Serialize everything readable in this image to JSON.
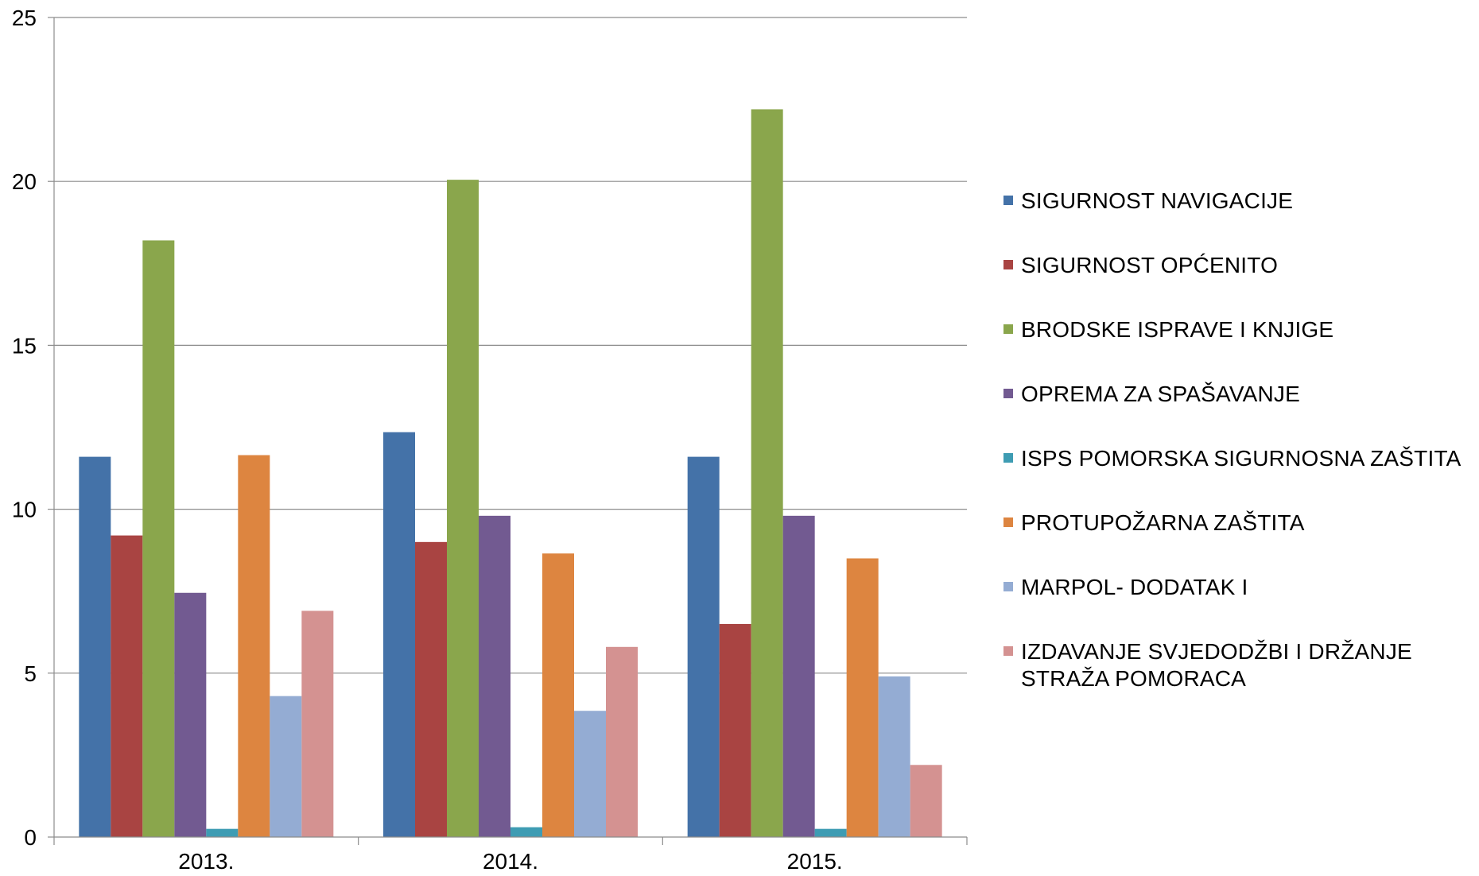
{
  "chart_data": {
    "type": "bar",
    "title": "",
    "xlabel": "",
    "ylabel": "",
    "ylim": [
      0,
      25
    ],
    "yticks": [
      "0",
      "5",
      "10",
      "15",
      "20",
      "25"
    ],
    "grid": true,
    "legend_position": "right",
    "categories": [
      "2013.",
      "2014.",
      "2015."
    ],
    "series": [
      {
        "name": "SIGURNOST NAVIGACIJE",
        "color": "#4472A8",
        "values": [
          11.6,
          12.35,
          11.6
        ]
      },
      {
        "name": "SIGURNOST OPĆENITO",
        "color": "#A94442",
        "values": [
          9.2,
          9.0,
          6.5
        ]
      },
      {
        "name": "BRODSKE ISPRAVE I KNJIGE",
        "color": "#8AA64C",
        "values": [
          18.2,
          20.05,
          22.2
        ]
      },
      {
        "name": "OPREMA ZA SPAŠAVANJE",
        "color": "#725A91",
        "values": [
          7.45,
          9.8,
          9.8
        ]
      },
      {
        "name": "ISPS POMORSKA SIGURNOSNA ZAŠTITA",
        "color": "#3E9CB3",
        "values": [
          0.25,
          0.3,
          0.25
        ]
      },
      {
        "name": "PROTUPOŽARNA ZAŠTITA",
        "color": "#DD8540",
        "values": [
          11.65,
          8.65,
          8.5
        ]
      },
      {
        "name": "MARPOL- DODATAK I",
        "color": "#94ACD3",
        "values": [
          4.3,
          3.85,
          4.9
        ]
      },
      {
        "name": "IZDAVANJE SVJEDODŽBI I DRŽANJE\nSTRAŽA POMORACA",
        "color": "#D49291",
        "values": [
          6.9,
          5.8,
          2.2
        ]
      }
    ]
  }
}
